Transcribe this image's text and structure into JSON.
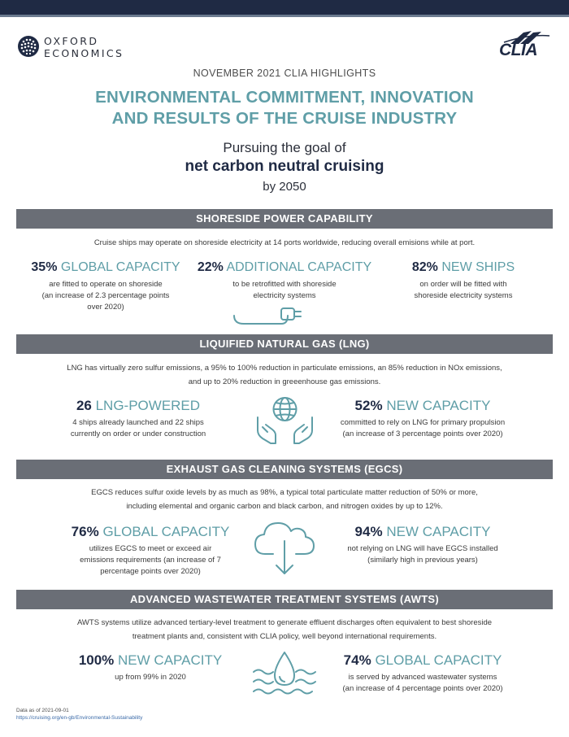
{
  "header": {
    "oxford_line1": "OXFORD",
    "oxford_line2": "ECONOMICS",
    "clia_logo_text": "CLIA",
    "kicker": "NOVEMBER 2021 CLIA HIGHLIGHTS",
    "title_line1": "ENVIRONMENTAL COMMITMENT, INNOVATION",
    "title_line2": "AND RESULTS OF THE CRUISE INDUSTRY",
    "goal_line1": "Pursuing the goal of",
    "goal_line2": "net carbon neutral cruising",
    "goal_line3": "by 2050"
  },
  "colors": {
    "navy": "#1f2a44",
    "teal": "#5f9ea7",
    "section_gray": "#6a6e76"
  },
  "sections": {
    "shoreside": {
      "title": "SHORESIDE POWER CAPABILITY",
      "description": "Cruise ships may operate on shoreside electricity at 14 ports worldwide, reducing overall emisions while at port.",
      "icon": "power-plug-icon",
      "stats": [
        {
          "number": "35%",
          "label": "GLOBAL CAPACITY",
          "desc_lines": [
            "are fitted to operate on shoreside",
            "(an increase of 2.3 percentage points",
            "over 2020)"
          ]
        },
        {
          "number": "22%",
          "label": "ADDITIONAL CAPACITY",
          "desc_lines": [
            "to be retrofitted with shoreside",
            "electricity systems"
          ]
        },
        {
          "number": "82%",
          "label": "NEW SHIPS",
          "desc_lines": [
            "on order will be fitted with",
            "shoreside electricity systems"
          ]
        }
      ]
    },
    "lng": {
      "title": "LIQUIFIED NATURAL GAS (LNG)",
      "description_lines": [
        "LNG has virtually zero sulfur emissions, a 95% to 100% reduction in particulate emissions, an 85% reduction in NOx emissions,",
        "and up to 20% reduction in greeenhouse gas emissions."
      ],
      "icon": "globe-in-hands-icon",
      "stats": [
        {
          "number": "26",
          "label": "LNG-POWERED",
          "desc_lines": [
            "4 ships already launched and 22 ships",
            "currently on order or under construction"
          ]
        },
        {
          "number": "52%",
          "label": "NEW CAPACITY",
          "desc_lines": [
            "committed to rely on LNG for primary propulsion",
            "(an increase of 3 percentage points over 2020)"
          ]
        }
      ]
    },
    "egcs": {
      "title": "EXHAUST GAS CLEANING SYSTEMS (EGCS)",
      "description_lines": [
        "EGCS reduces sulfur oxide levels by as much as 98%, a typical total particulate matter reduction of 50% or more,",
        "including elemental and organic carbon and black carbon, and nitrogen oxides by up to 12%."
      ],
      "icon": "cloud-download-icon",
      "stats": [
        {
          "number": "76%",
          "label": "GLOBAL CAPACITY",
          "desc_lines": [
            "utilizes EGCS to meet or exceed air",
            "emissions requirements (an increase of 7",
            "percentage points over 2020)"
          ]
        },
        {
          "number": "94%",
          "label": "NEW CAPACITY",
          "desc_lines": [
            "not relying on LNG will have EGCS installed",
            "(similarly high in previous years)"
          ]
        }
      ]
    },
    "awts": {
      "title": "ADVANCED WASTEWATER TREATMENT SYSTEMS (AWTS)",
      "description_lines": [
        "AWTS systems utilize advanced tertiary-level treatment to generate effluent discharges often equivalent to best shoreside",
        "treatment plants and, consistent with CLIA policy, well beyond international requirements."
      ],
      "icon": "water-drop-icon",
      "stats": [
        {
          "number": "100%",
          "label": "NEW CAPACITY",
          "desc_lines": [
            "up from 99% in 2020"
          ]
        },
        {
          "number": "74%",
          "label": "GLOBAL CAPACITY",
          "desc_lines": [
            "is served by advanced wastewater systems",
            "(an increase of 4 percentage points over 2020)"
          ]
        }
      ]
    }
  },
  "footer": {
    "data_date": "Data as of 2021-09-01",
    "url": "https://cruising.org/en-gb/Environmental-Sustainability"
  }
}
